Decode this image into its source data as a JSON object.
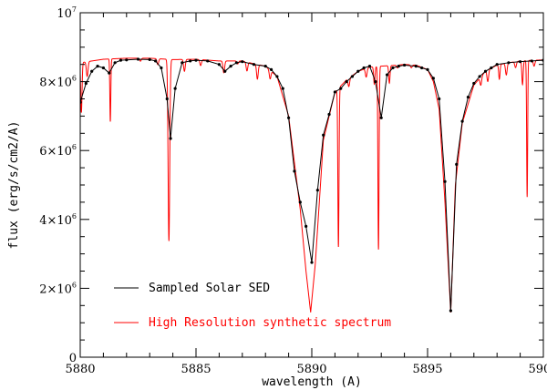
{
  "chart_data": {
    "type": "line",
    "title": "",
    "xlabel": "wavelength (A)",
    "ylabel": "flux (erg/s/cm2/A)",
    "xlim": [
      5880,
      5900
    ],
    "ylim": [
      0,
      10000000
    ],
    "x_ticks": [
      {
        "value": 5880,
        "label": "5880"
      },
      {
        "value": 5885,
        "label": "5885"
      },
      {
        "value": 5890,
        "label": "5890"
      },
      {
        "value": 5895,
        "label": "5895"
      },
      {
        "value": 5900,
        "label": "5900"
      }
    ],
    "y_ticks": [
      {
        "value": 0,
        "mant": "0",
        "exp": ""
      },
      {
        "value": 2000000,
        "mant": "2×10",
        "exp": "6"
      },
      {
        "value": 4000000,
        "mant": "4×10",
        "exp": "6"
      },
      {
        "value": 6000000,
        "mant": "6×10",
        "exp": "6"
      },
      {
        "value": 8000000,
        "mant": "8×10",
        "exp": "6"
      },
      {
        "value": 10000000,
        "mant": "10",
        "exp": "7"
      }
    ],
    "grid": false,
    "legend_position": "bottom-left",
    "series": [
      {
        "name": "Sampled Solar SED",
        "color": "#000000",
        "markers": true,
        "points": [
          [
            5880.0,
            7400000
          ],
          [
            5880.25,
            7950000
          ],
          [
            5880.5,
            8300000
          ],
          [
            5880.75,
            8450000
          ],
          [
            5881.0,
            8400000
          ],
          [
            5881.25,
            8250000
          ],
          [
            5881.5,
            8550000
          ],
          [
            5881.75,
            8620000
          ],
          [
            5882.0,
            8630000
          ],
          [
            5882.5,
            8650000
          ],
          [
            5883.0,
            8640000
          ],
          [
            5883.25,
            8600000
          ],
          [
            5883.5,
            8400000
          ],
          [
            5883.75,
            7500000
          ],
          [
            5883.9,
            6350000
          ],
          [
            5884.1,
            7800000
          ],
          [
            5884.4,
            8550000
          ],
          [
            5884.75,
            8600000
          ],
          [
            5885.0,
            8620000
          ],
          [
            5885.5,
            8600000
          ],
          [
            5886.0,
            8500000
          ],
          [
            5886.25,
            8300000
          ],
          [
            5886.5,
            8450000
          ],
          [
            5886.75,
            8550000
          ],
          [
            5887.0,
            8580000
          ],
          [
            5887.5,
            8500000
          ],
          [
            5888.0,
            8450000
          ],
          [
            5888.25,
            8350000
          ],
          [
            5888.5,
            8150000
          ],
          [
            5888.75,
            7800000
          ],
          [
            5889.0,
            6950000
          ],
          [
            5889.25,
            5400000
          ],
          [
            5889.5,
            4500000
          ],
          [
            5889.75,
            3800000
          ],
          [
            5890.0,
            2750000
          ],
          [
            5890.25,
            4850000
          ],
          [
            5890.5,
            6450000
          ],
          [
            5890.75,
            7050000
          ],
          [
            5891.0,
            7700000
          ],
          [
            5891.25,
            7800000
          ],
          [
            5891.5,
            8000000
          ],
          [
            5891.75,
            8150000
          ],
          [
            5892.0,
            8300000
          ],
          [
            5892.25,
            8400000
          ],
          [
            5892.5,
            8450000
          ],
          [
            5892.75,
            8000000
          ],
          [
            5893.0,
            6950000
          ],
          [
            5893.25,
            8200000
          ],
          [
            5893.5,
            8400000
          ],
          [
            5893.75,
            8450000
          ],
          [
            5894.0,
            8480000
          ],
          [
            5894.5,
            8450000
          ],
          [
            5894.75,
            8400000
          ],
          [
            5895.0,
            8350000
          ],
          [
            5895.25,
            8100000
          ],
          [
            5895.5,
            7500000
          ],
          [
            5895.75,
            5100000
          ],
          [
            5896.0,
            1350000
          ],
          [
            5896.25,
            5600000
          ],
          [
            5896.5,
            6850000
          ],
          [
            5896.75,
            7550000
          ],
          [
            5897.0,
            7950000
          ],
          [
            5897.25,
            8150000
          ],
          [
            5897.5,
            8300000
          ],
          [
            5897.75,
            8400000
          ],
          [
            5898.0,
            8500000
          ],
          [
            5898.5,
            8550000
          ],
          [
            5899.0,
            8580000
          ],
          [
            5899.5,
            8600000
          ],
          [
            5900.0,
            8620000
          ]
        ]
      },
      {
        "name": "High Resolution synthetic spectrum",
        "color": "#ff0000",
        "markers": false,
        "continuum": [
          [
            5880.0,
            8550000
          ],
          [
            5881.0,
            8650000
          ],
          [
            5882.0,
            8680000
          ],
          [
            5883.0,
            8680000
          ],
          [
            5884.0,
            8640000
          ],
          [
            5885.0,
            8650000
          ],
          [
            5886.0,
            8600000
          ],
          [
            5887.0,
            8600000
          ],
          [
            5887.5,
            8520000
          ],
          [
            5888.0,
            8450000
          ],
          [
            5888.5,
            8150000
          ],
          [
            5889.0,
            7000000
          ],
          [
            5889.5,
            4300000
          ],
          [
            5889.75,
            2500000
          ],
          [
            5889.95,
            1300000
          ],
          [
            5890.15,
            2700000
          ],
          [
            5890.5,
            6300000
          ],
          [
            5891.0,
            7700000
          ],
          [
            5891.5,
            8050000
          ],
          [
            5892.0,
            8300000
          ],
          [
            5892.5,
            8420000
          ],
          [
            5893.0,
            8450000
          ],
          [
            5893.5,
            8470000
          ],
          [
            5894.0,
            8500000
          ],
          [
            5894.5,
            8480000
          ],
          [
            5895.0,
            8350000
          ],
          [
            5895.25,
            8000000
          ],
          [
            5895.5,
            7200000
          ],
          [
            5895.75,
            4500000
          ],
          [
            5896.0,
            1300000
          ],
          [
            5896.2,
            5000000
          ],
          [
            5896.5,
            6800000
          ],
          [
            5897.0,
            7900000
          ],
          [
            5897.5,
            8300000
          ],
          [
            5898.0,
            8480000
          ],
          [
            5898.5,
            8550000
          ],
          [
            5899.0,
            8600000
          ],
          [
            5899.5,
            8620000
          ],
          [
            5900.0,
            8630000
          ]
        ],
        "absorption_lines": [
          {
            "center": 5880.05,
            "depth": 0.17,
            "width": 0.04
          },
          {
            "center": 5880.3,
            "depth": 0.05,
            "width": 0.05
          },
          {
            "center": 5881.3,
            "depth": 0.21,
            "width": 0.03
          },
          {
            "center": 5882.6,
            "depth": 0.01,
            "width": 0.05
          },
          {
            "center": 5883.35,
            "depth": 0.02,
            "width": 0.05
          },
          {
            "center": 5883.83,
            "depth": 0.61,
            "width": 0.05
          },
          {
            "center": 5884.5,
            "depth": 0.04,
            "width": 0.05
          },
          {
            "center": 5885.2,
            "depth": 0.02,
            "width": 0.05
          },
          {
            "center": 5886.2,
            "depth": 0.04,
            "width": 0.05
          },
          {
            "center": 5886.8,
            "depth": 0.01,
            "width": 0.05
          },
          {
            "center": 5887.2,
            "depth": 0.03,
            "width": 0.05
          },
          {
            "center": 5887.65,
            "depth": 0.05,
            "width": 0.05
          },
          {
            "center": 5888.2,
            "depth": 0.03,
            "width": 0.05
          },
          {
            "center": 5891.15,
            "depth": 0.59,
            "width": 0.035
          },
          {
            "center": 5891.6,
            "depth": 0.03,
            "width": 0.05
          },
          {
            "center": 5892.35,
            "depth": 0.03,
            "width": 0.05
          },
          {
            "center": 5892.7,
            "depth": 0.06,
            "width": 0.04
          },
          {
            "center": 5892.88,
            "depth": 0.63,
            "width": 0.035
          },
          {
            "center": 5893.35,
            "depth": 0.06,
            "width": 0.04
          },
          {
            "center": 5893.7,
            "depth": 0.01,
            "width": 0.05
          },
          {
            "center": 5894.3,
            "depth": 0.01,
            "width": 0.05
          },
          {
            "center": 5897.3,
            "depth": 0.03,
            "width": 0.05
          },
          {
            "center": 5897.6,
            "depth": 0.04,
            "width": 0.05
          },
          {
            "center": 5898.1,
            "depth": 0.05,
            "width": 0.04
          },
          {
            "center": 5898.4,
            "depth": 0.04,
            "width": 0.05
          },
          {
            "center": 5898.8,
            "depth": 0.02,
            "width": 0.05
          },
          {
            "center": 5899.1,
            "depth": 0.08,
            "width": 0.04
          },
          {
            "center": 5899.3,
            "depth": 0.46,
            "width": 0.03
          },
          {
            "center": 5899.6,
            "depth": 0.02,
            "width": 0.05
          }
        ]
      }
    ]
  }
}
